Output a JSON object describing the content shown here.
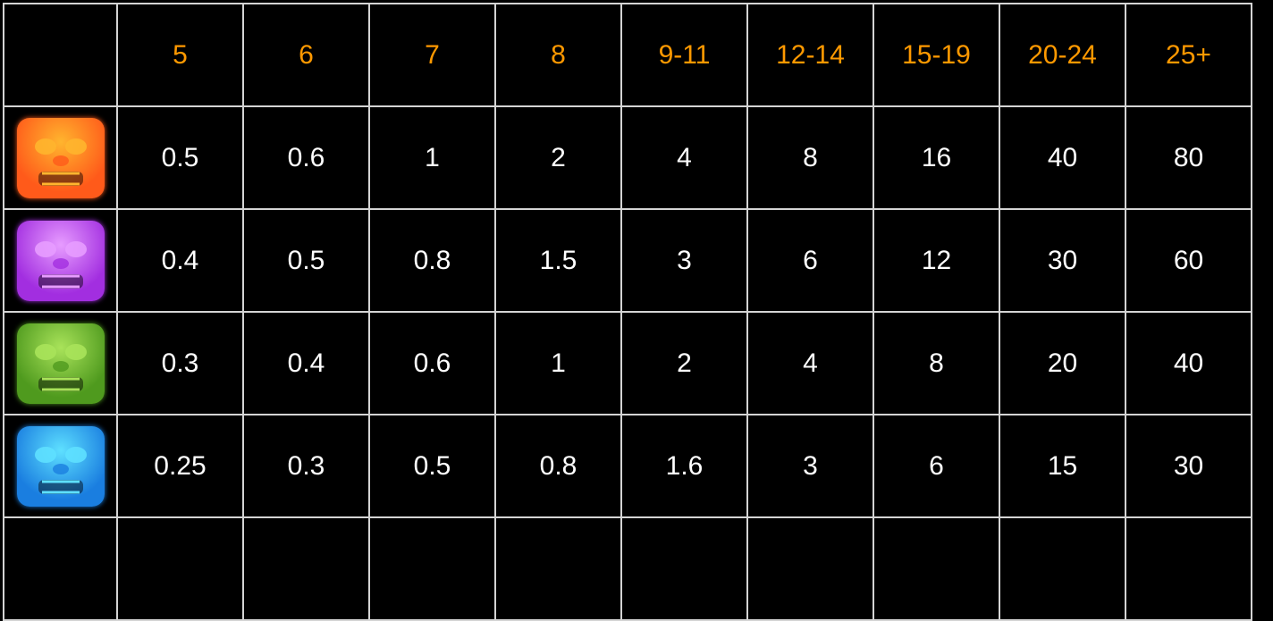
{
  "header": [
    "5",
    "6",
    "7",
    "8",
    "9-11",
    "12-14",
    "15-19",
    "20-24",
    "25+"
  ],
  "rows": [
    {
      "icon": "red-lion-mask-icon",
      "color": "#ff5a1a",
      "light": "#ffb52e",
      "values": [
        "0.5",
        "0.6",
        "1",
        "2",
        "4",
        "8",
        "16",
        "40",
        "80"
      ]
    },
    {
      "icon": "purple-tiki-mask-icon",
      "color": "#a22ee0",
      "light": "#e79cff",
      "values": [
        "0.4",
        "0.5",
        "0.8",
        "1.5",
        "3",
        "6",
        "12",
        "30",
        "60"
      ]
    },
    {
      "icon": "green-frog-mask-icon",
      "color": "#4f9a1e",
      "light": "#a9e35a",
      "values": [
        "0.3",
        "0.4",
        "0.6",
        "1",
        "2",
        "4",
        "8",
        "20",
        "40"
      ]
    },
    {
      "icon": "blue-bird-mask-icon",
      "color": "#1a7ee0",
      "light": "#5ee0ff",
      "values": [
        "0.25",
        "0.3",
        "0.5",
        "0.8",
        "1.6",
        "3",
        "6",
        "15",
        "30"
      ]
    }
  ],
  "colors": {
    "header_text": "#ff9900",
    "cell_text": "#ffffff",
    "grid": "#d4d4d4",
    "background": "#000000"
  }
}
